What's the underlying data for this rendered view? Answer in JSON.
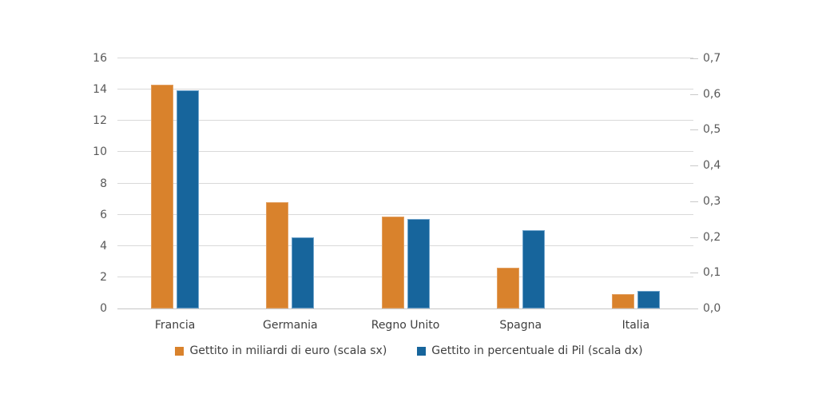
{
  "chart_data": {
    "type": "bar",
    "title": "",
    "categories": [
      "Francia",
      "Germania",
      "Regno Unito",
      "Spagna",
      "Italia"
    ],
    "series": [
      {
        "name": "Gettito in miliardi di euro (scala sx)",
        "axis": "left",
        "color": "#d9822c",
        "values": [
          14.3,
          6.8,
          5.9,
          2.6,
          0.9
        ]
      },
      {
        "name": "Gettito in percentuale di Pil (scala dx)",
        "axis": "right",
        "color": "#17659c",
        "values": [
          0.61,
          0.2,
          0.25,
          0.22,
          0.05
        ]
      }
    ],
    "left_axis": {
      "min": 0,
      "max": 16,
      "step": 2,
      "tick_labels": [
        "0",
        "2",
        "4",
        "6",
        "8",
        "10",
        "12",
        "14",
        "16"
      ]
    },
    "right_axis": {
      "min": 0,
      "max": 0.7,
      "step": 0.1,
      "tick_labels": [
        "0,0",
        "0,1",
        "0,2",
        "0,3",
        "0,4",
        "0,5",
        "0,6",
        "0,7"
      ]
    },
    "grid": true,
    "legend_position": "bottom"
  },
  "colors": {
    "background": "#ffffff",
    "gridline": "#d9d9d9",
    "axis_text": "#595959",
    "label_text": "#3f3f3f",
    "series_orange": "#d9822c",
    "series_blue": "#17659c"
  }
}
